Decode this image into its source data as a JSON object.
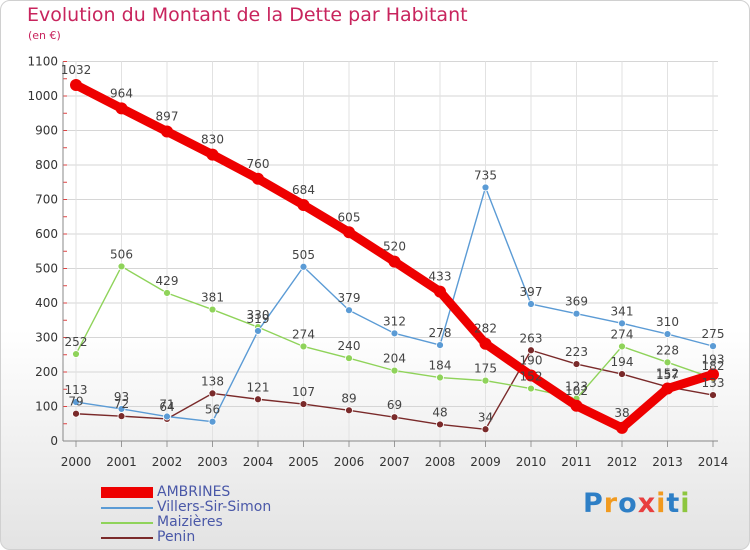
{
  "title": "Evolution du Montant de la Dette par Habitant",
  "subtitle": "(en €)",
  "brand": {
    "letters": [
      "P",
      "r",
      "o",
      "x",
      "i",
      "t",
      "i"
    ],
    "colors": [
      "#2e7fc6",
      "#f19a1f",
      "#2e7fc6",
      "#e83f3f",
      "#f19a1f",
      "#2e7fc6",
      "#8dc63f"
    ]
  },
  "chart_data": {
    "type": "line",
    "title": "Evolution du Montant de la Dette par Habitant",
    "ylabel": "(en €)",
    "xlabel": "",
    "ylim": [
      0,
      1100
    ],
    "yticks": [
      0,
      100,
      200,
      300,
      400,
      500,
      600,
      700,
      800,
      900,
      1000,
      1100
    ],
    "x": [
      "2000",
      "2001",
      "2002",
      "2003",
      "2004",
      "2005",
      "2006",
      "2007",
      "2008",
      "2009",
      "2010",
      "2011",
      "2012",
      "2013",
      "2014"
    ],
    "grid": true,
    "legend_position": "bottom-left",
    "series": [
      {
        "name": "Penin",
        "color": "#7a2a2a",
        "values": [
          79,
          72,
          64,
          138,
          121,
          107,
          89,
          69,
          48,
          34,
          263,
          223,
          194,
          157,
          133
        ],
        "labels": [
          "79",
          "72",
          "64",
          "138",
          "121",
          "107",
          "89",
          "69",
          "48",
          "34",
          "263",
          "223",
          "194",
          "157",
          "133"
        ]
      },
      {
        "name": "Maizières",
        "color": "#8fd35a",
        "values": [
          252,
          506,
          429,
          381,
          330,
          274,
          240,
          204,
          184,
          175,
          152,
          123,
          274,
          228,
          182
        ],
        "labels": [
          "252",
          "506",
          "429",
          "381",
          "330",
          "274",
          "240",
          "204",
          "184",
          "175",
          "152",
          "123",
          "274",
          "228",
          "182"
        ]
      },
      {
        "name": "Villers-Sir-Simon",
        "color": "#5b9bd5",
        "values": [
          113,
          93,
          71,
          56,
          319,
          505,
          379,
          312,
          278,
          735,
          397,
          369,
          341,
          310,
          275
        ],
        "labels": [
          "113",
          "93",
          "71",
          "56",
          "319",
          "505",
          "379",
          "312",
          "278",
          "735",
          "397",
          "369",
          "341",
          "310",
          "275"
        ]
      },
      {
        "name": "AMBRINES",
        "color": "#ee0000",
        "values": [
          1032,
          964,
          897,
          830,
          760,
          684,
          605,
          520,
          433,
          282,
          190,
          102,
          38,
          152,
          193
        ],
        "labels": [
          "1032",
          "964",
          "897",
          "830",
          "760",
          "684",
          "605",
          "520",
          "433",
          "282",
          "190",
          "102",
          "38",
          "152",
          "193"
        ]
      }
    ]
  },
  "legend": [
    {
      "label": "AMBRINES",
      "color": "#ee0000"
    },
    {
      "label": "Villers-Sir-Simon",
      "color": "#5b9bd5"
    },
    {
      "label": "Maizières",
      "color": "#8fd35a"
    },
    {
      "label": "Penin",
      "color": "#7a2a2a"
    }
  ]
}
